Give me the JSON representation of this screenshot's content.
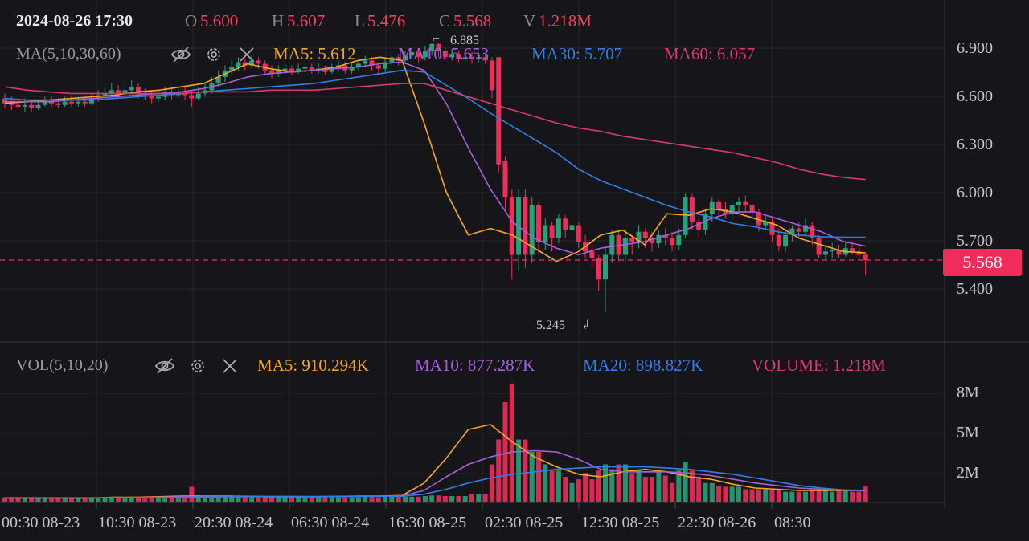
{
  "header": {
    "datetime": "2024-08-26 17:30",
    "open_label": "O",
    "open_value": "5.600",
    "high_label": "H",
    "high_value": "5.607",
    "low_label": "L",
    "low_value": "5.476",
    "close_label": "C",
    "close_value": "5.568",
    "vol_label": "V",
    "vol_value": "1.218M"
  },
  "ma_legend": {
    "name": "MA(5,10,30,60)",
    "items": [
      {
        "label": "MA5: 5.612",
        "color": "#f5a623"
      },
      {
        "label": "MA10: 5.653",
        "color": "#a461d8"
      },
      {
        "label": "MA30: 5.707",
        "color": "#2f7fe6"
      },
      {
        "label": "MA60: 6.057",
        "color": "#d63a73"
      }
    ]
  },
  "vol_legend": {
    "name": "VOL(5,10,20)",
    "items": [
      {
        "label": "MA5: 910.294K",
        "color": "#f5a623"
      },
      {
        "label": "MA10: 877.287K",
        "color": "#a461d8"
      },
      {
        "label": "MA20: 898.827K",
        "color": "#2f7fe6"
      },
      {
        "label": "VOLUME: 1.218M",
        "color": "#d63a73"
      }
    ]
  },
  "icons": {
    "visibility": "eye-slash-icon",
    "settings": "gear-icon",
    "close": "close-icon"
  },
  "current_price": "5.568",
  "price_axis": [
    "6.900",
    "6.600",
    "6.300",
    "6.000",
    "5.700",
    "5.400"
  ],
  "volume_axis": [
    "8M",
    "5M",
    "2M"
  ],
  "time_axis": [
    "00:30 08-23",
    "10:30 08-23",
    "20:30 08-24",
    "06:30 08-24",
    "16:30 08-25",
    "02:30 08-25",
    "12:30 08-25",
    "22:30 08-26",
    "08:30"
  ],
  "annotations": {
    "high": "6.885",
    "low": "5.245"
  },
  "colors": {
    "up": "#26a17a",
    "down": "#f02c5a",
    "background": "#16161a"
  },
  "chart_data": {
    "type": "candlestick",
    "price_ylim": [
      5.1,
      7.05
    ],
    "volume_ylim": [
      0,
      10
    ],
    "volume_unit": "M",
    "candles": [
      [
        6.55,
        6.52,
        6.58,
        6.49,
        0.35
      ],
      [
        6.52,
        6.51,
        6.56,
        6.48,
        0.3
      ],
      [
        6.51,
        6.5,
        6.55,
        6.48,
        0.3
      ],
      [
        6.5,
        6.51,
        6.55,
        6.47,
        0.32
      ],
      [
        6.51,
        6.49,
        6.54,
        6.47,
        0.3
      ],
      [
        6.49,
        6.51,
        6.54,
        6.48,
        0.28
      ],
      [
        6.51,
        6.53,
        6.56,
        6.5,
        0.3
      ],
      [
        6.53,
        6.52,
        6.56,
        6.5,
        0.28
      ],
      [
        6.52,
        6.51,
        6.55,
        6.49,
        0.3
      ],
      [
        6.51,
        6.53,
        6.56,
        6.5,
        0.3
      ],
      [
        6.53,
        6.52,
        6.57,
        6.5,
        0.32
      ],
      [
        6.52,
        6.53,
        6.56,
        6.5,
        0.3
      ],
      [
        6.53,
        6.52,
        6.56,
        6.5,
        0.28
      ],
      [
        6.52,
        6.55,
        6.58,
        6.51,
        0.3
      ],
      [
        6.55,
        6.57,
        6.6,
        6.53,
        0.35
      ],
      [
        6.57,
        6.58,
        6.62,
        6.55,
        0.35
      ],
      [
        6.58,
        6.6,
        6.64,
        6.56,
        0.4
      ],
      [
        6.6,
        6.58,
        6.63,
        6.55,
        0.4
      ],
      [
        6.58,
        6.6,
        6.64,
        6.56,
        0.35
      ],
      [
        6.6,
        6.62,
        6.66,
        6.58,
        0.4
      ],
      [
        6.62,
        6.58,
        6.64,
        6.55,
        0.4
      ],
      [
        6.58,
        6.57,
        6.61,
        6.54,
        0.35
      ],
      [
        6.57,
        6.55,
        6.6,
        6.52,
        0.3
      ],
      [
        6.55,
        6.56,
        6.6,
        6.53,
        0.3
      ],
      [
        6.56,
        6.59,
        6.62,
        6.54,
        0.35
      ],
      [
        6.59,
        6.57,
        6.62,
        6.54,
        0.35
      ],
      [
        6.57,
        6.58,
        6.61,
        6.55,
        0.3
      ],
      [
        6.58,
        6.57,
        6.62,
        6.54,
        0.3
      ],
      [
        6.57,
        6.55,
        6.6,
        6.5,
        1.2
      ],
      [
        6.55,
        6.58,
        6.62,
        6.54,
        0.5
      ],
      [
        6.58,
        6.6,
        6.64,
        6.56,
        0.4
      ],
      [
        6.6,
        6.64,
        6.68,
        6.58,
        0.5
      ],
      [
        6.64,
        6.68,
        6.72,
        6.62,
        0.5
      ],
      [
        6.68,
        6.72,
        6.75,
        6.65,
        0.5
      ],
      [
        6.72,
        6.74,
        6.78,
        6.7,
        0.5
      ],
      [
        6.74,
        6.77,
        6.8,
        6.72,
        0.5
      ],
      [
        6.77,
        6.75,
        6.79,
        6.72,
        0.45
      ],
      [
        6.75,
        6.78,
        6.81,
        6.73,
        0.45
      ],
      [
        6.78,
        6.76,
        6.8,
        6.73,
        0.4
      ],
      [
        6.76,
        6.72,
        6.78,
        6.7,
        0.4
      ],
      [
        6.72,
        6.7,
        6.75,
        6.67,
        0.4
      ],
      [
        6.7,
        6.72,
        6.75,
        6.68,
        0.35
      ],
      [
        6.72,
        6.73,
        6.76,
        6.7,
        0.35
      ],
      [
        6.73,
        6.71,
        6.75,
        6.69,
        0.35
      ],
      [
        6.71,
        6.73,
        6.76,
        6.7,
        0.35
      ],
      [
        6.73,
        6.74,
        6.77,
        6.71,
        0.35
      ],
      [
        6.74,
        6.72,
        6.76,
        6.7,
        0.35
      ],
      [
        6.72,
        6.73,
        6.76,
        6.7,
        0.35
      ],
      [
        6.73,
        6.71,
        6.75,
        6.69,
        0.35
      ],
      [
        6.71,
        6.73,
        6.76,
        6.7,
        0.35
      ],
      [
        6.73,
        6.75,
        6.78,
        6.71,
        0.35
      ],
      [
        6.75,
        6.72,
        6.77,
        6.7,
        0.35
      ],
      [
        6.72,
        6.74,
        6.77,
        6.7,
        0.35
      ],
      [
        6.74,
        6.76,
        6.79,
        6.72,
        0.35
      ],
      [
        6.76,
        6.78,
        6.81,
        6.74,
        0.4
      ],
      [
        6.78,
        6.75,
        6.8,
        6.72,
        0.4
      ],
      [
        6.75,
        6.73,
        6.77,
        6.7,
        0.35
      ],
      [
        6.73,
        6.77,
        6.8,
        6.71,
        0.4
      ],
      [
        6.77,
        6.8,
        6.83,
        6.75,
        0.4
      ],
      [
        6.8,
        6.78,
        6.82,
        6.75,
        0.4
      ],
      [
        6.78,
        6.81,
        6.84,
        6.76,
        0.4
      ],
      [
        6.81,
        6.83,
        6.86,
        6.79,
        0.4
      ],
      [
        6.83,
        6.8,
        6.85,
        6.77,
        0.4
      ],
      [
        6.8,
        6.84,
        6.87,
        6.78,
        0.45
      ],
      [
        6.84,
        6.88,
        6.885,
        6.81,
        0.5
      ],
      [
        6.88,
        6.84,
        6.885,
        6.8,
        0.5
      ],
      [
        6.84,
        6.8,
        6.86,
        6.77,
        0.45
      ],
      [
        6.8,
        6.82,
        6.85,
        6.78,
        0.45
      ],
      [
        6.82,
        6.79,
        6.84,
        6.77,
        0.45
      ],
      [
        6.79,
        6.8,
        6.83,
        6.77,
        0.45
      ],
      [
        6.8,
        6.79,
        6.83,
        6.76,
        0.6
      ],
      [
        6.79,
        6.8,
        6.83,
        6.77,
        0.6
      ],
      [
        6.8,
        6.78,
        6.82,
        6.76,
        0.6
      ],
      [
        6.78,
        6.6,
        6.8,
        6.55,
        3.0
      ],
      [
        6.8,
        6.15,
        6.8,
        6.1,
        5.0
      ],
      [
        6.17,
        5.95,
        6.2,
        5.88,
        8.0
      ],
      [
        5.95,
        5.6,
        6.0,
        5.45,
        9.5
      ],
      [
        5.6,
        5.95,
        6.0,
        5.5,
        5.0
      ],
      [
        5.95,
        5.6,
        6.0,
        5.52,
        5.0
      ],
      [
        5.6,
        5.9,
        5.95,
        5.55,
        4.0
      ],
      [
        5.9,
        5.68,
        5.92,
        5.6,
        4.0
      ],
      [
        5.68,
        5.78,
        5.82,
        5.63,
        3.0
      ],
      [
        5.78,
        5.7,
        5.8,
        5.62,
        2.5
      ],
      [
        5.7,
        5.82,
        5.85,
        5.67,
        2.5
      ],
      [
        5.82,
        5.75,
        5.84,
        5.7,
        2.0
      ],
      [
        5.75,
        5.78,
        5.82,
        5.72,
        1.5
      ],
      [
        5.78,
        5.68,
        5.8,
        5.64,
        1.8
      ],
      [
        5.68,
        5.62,
        5.72,
        5.58,
        2.3
      ],
      [
        5.62,
        5.58,
        5.66,
        5.52,
        1.8
      ],
      [
        5.58,
        5.45,
        5.6,
        5.38,
        2.5
      ],
      [
        5.45,
        5.6,
        5.65,
        5.25,
        3.0
      ],
      [
        5.6,
        5.72,
        5.75,
        5.55,
        2.6
      ],
      [
        5.72,
        5.6,
        5.74,
        5.56,
        3.0
      ],
      [
        5.6,
        5.7,
        5.75,
        5.56,
        3.0
      ],
      [
        5.7,
        5.68,
        5.72,
        5.6,
        2.3
      ],
      [
        5.68,
        5.74,
        5.78,
        5.64,
        2.6
      ],
      [
        5.74,
        5.7,
        5.76,
        5.64,
        2.0
      ],
      [
        5.7,
        5.67,
        5.74,
        5.62,
        2.0
      ],
      [
        5.67,
        5.72,
        5.75,
        5.64,
        2.5
      ],
      [
        5.72,
        5.7,
        5.76,
        5.66,
        2.1
      ],
      [
        5.7,
        5.66,
        5.74,
        5.62,
        1.5
      ],
      [
        5.66,
        5.72,
        5.76,
        5.63,
        2.5
      ],
      [
        5.72,
        5.95,
        5.97,
        5.7,
        3.2
      ],
      [
        5.95,
        5.8,
        5.97,
        5.75,
        2.5
      ],
      [
        5.8,
        5.75,
        5.83,
        5.7,
        2.0
      ],
      [
        5.75,
        5.85,
        5.88,
        5.72,
        1.5
      ],
      [
        5.85,
        5.92,
        5.95,
        5.8,
        1.5
      ],
      [
        5.92,
        5.88,
        5.94,
        5.84,
        1.3
      ],
      [
        5.88,
        5.85,
        5.92,
        5.82,
        1.2
      ],
      [
        5.85,
        5.9,
        5.92,
        5.82,
        1.2
      ],
      [
        5.9,
        5.92,
        5.95,
        5.86,
        1.2
      ],
      [
        5.92,
        5.9,
        5.96,
        5.86,
        1.0
      ],
      [
        5.9,
        5.86,
        5.92,
        5.82,
        1.0
      ],
      [
        5.86,
        5.78,
        5.88,
        5.74,
        1.0
      ],
      [
        5.78,
        5.8,
        5.84,
        5.75,
        1.0
      ],
      [
        5.8,
        5.72,
        5.82,
        5.68,
        0.9
      ],
      [
        5.72,
        5.65,
        5.76,
        5.62,
        0.9
      ],
      [
        5.65,
        5.72,
        5.75,
        5.62,
        0.8
      ],
      [
        5.72,
        5.76,
        5.78,
        5.68,
        0.8
      ],
      [
        5.76,
        5.74,
        5.8,
        5.7,
        0.8
      ],
      [
        5.74,
        5.78,
        5.82,
        5.72,
        0.8
      ],
      [
        5.78,
        5.7,
        5.8,
        5.66,
        0.9
      ],
      [
        5.7,
        5.6,
        5.72,
        5.58,
        1.0
      ],
      [
        5.6,
        5.62,
        5.66,
        5.57,
        1.0
      ],
      [
        5.62,
        5.63,
        5.67,
        5.58,
        0.8
      ],
      [
        5.63,
        5.6,
        5.66,
        5.58,
        1.0
      ],
      [
        5.6,
        5.64,
        5.68,
        5.59,
        0.9
      ],
      [
        5.64,
        5.62,
        5.68,
        5.6,
        0.8
      ],
      [
        5.62,
        5.6,
        5.66,
        5.57,
        0.8
      ],
      [
        5.6,
        5.568,
        5.607,
        5.476,
        1.218
      ]
    ],
    "ma_series": [
      {
        "name": "MA5",
        "color": "#f5a623",
        "values": [
          6.52,
          6.53,
          6.54,
          6.55,
          6.56,
          6.57,
          6.59,
          6.6,
          6.62,
          6.64,
          6.7,
          6.76,
          6.73,
          6.71,
          6.72,
          6.74,
          6.78,
          6.8,
          6.78,
          6.4,
          5.98,
          5.72,
          5.76,
          5.72,
          5.64,
          5.56,
          5.62,
          5.72,
          5.75,
          5.66,
          5.85,
          5.84,
          5.88,
          5.86,
          5.82,
          5.78,
          5.7,
          5.66,
          5.62,
          5.612
        ]
      },
      {
        "name": "MA10",
        "color": "#a461d8",
        "values": [
          6.53,
          6.53,
          6.53,
          6.54,
          6.55,
          6.56,
          6.57,
          6.58,
          6.59,
          6.61,
          6.64,
          6.68,
          6.7,
          6.71,
          6.72,
          6.73,
          6.74,
          6.76,
          6.77,
          6.72,
          6.52,
          6.25,
          6.0,
          5.8,
          5.7,
          5.64,
          5.6,
          5.64,
          5.66,
          5.68,
          5.72,
          5.76,
          5.82,
          5.86,
          5.86,
          5.82,
          5.78,
          5.74,
          5.68,
          5.653
        ]
      },
      {
        "name": "MA30",
        "color": "#2f7fe6",
        "values": [
          6.55,
          6.54,
          6.54,
          6.54,
          6.54,
          6.55,
          6.56,
          6.57,
          6.58,
          6.59,
          6.6,
          6.61,
          6.62,
          6.63,
          6.64,
          6.66,
          6.68,
          6.7,
          6.72,
          6.71,
          6.63,
          6.55,
          6.46,
          6.38,
          6.3,
          6.22,
          6.12,
          6.05,
          6.0,
          5.95,
          5.9,
          5.86,
          5.83,
          5.79,
          5.77,
          5.74,
          5.72,
          5.71,
          5.707,
          5.707
        ]
      },
      {
        "name": "MA60",
        "color": "#d63a73",
        "values": [
          6.62,
          6.6,
          6.59,
          6.58,
          6.58,
          6.58,
          6.58,
          6.58,
          6.58,
          6.59,
          6.59,
          6.59,
          6.6,
          6.6,
          6.6,
          6.61,
          6.62,
          6.63,
          6.64,
          6.64,
          6.6,
          6.56,
          6.52,
          6.48,
          6.44,
          6.4,
          6.37,
          6.35,
          6.32,
          6.3,
          6.28,
          6.26,
          6.24,
          6.22,
          6.19,
          6.16,
          6.12,
          6.09,
          6.07,
          6.057
        ]
      }
    ],
    "vol_ma_series": [
      {
        "name": "MA5",
        "color": "#f5a623",
        "values": [
          0.3,
          0.3,
          0.3,
          0.3,
          0.3,
          0.35,
          0.35,
          0.4,
          0.45,
          0.45,
          0.45,
          0.42,
          0.4,
          0.4,
          0.4,
          0.42,
          0.45,
          0.45,
          0.5,
          1.5,
          3.5,
          5.8,
          6.2,
          4.8,
          3.6,
          2.8,
          2.2,
          2.0,
          2.4,
          2.6,
          2.4,
          2.0,
          1.8,
          1.4,
          1.1,
          1.0,
          0.9,
          0.9,
          0.9,
          0.91
        ]
      },
      {
        "name": "MA10",
        "color": "#a461d8",
        "values": [
          0.3,
          0.3,
          0.3,
          0.3,
          0.3,
          0.32,
          0.33,
          0.36,
          0.4,
          0.42,
          0.44,
          0.43,
          0.42,
          0.41,
          0.4,
          0.41,
          0.43,
          0.44,
          0.47,
          0.9,
          2.0,
          3.0,
          3.6,
          4.0,
          4.1,
          4.0,
          3.4,
          2.6,
          2.4,
          2.4,
          2.4,
          2.3,
          2.1,
          1.8,
          1.5,
          1.3,
          1.1,
          1.0,
          0.92,
          0.88
        ]
      },
      {
        "name": "MA20",
        "color": "#2f7fe6",
        "values": [
          0.32,
          0.32,
          0.31,
          0.31,
          0.31,
          0.31,
          0.32,
          0.33,
          0.35,
          0.37,
          0.39,
          0.4,
          0.41,
          0.42,
          0.42,
          0.42,
          0.42,
          0.43,
          0.44,
          0.6,
          1.0,
          1.5,
          1.9,
          2.2,
          2.4,
          2.6,
          2.7,
          2.8,
          2.8,
          2.8,
          2.7,
          2.6,
          2.4,
          2.2,
          1.9,
          1.6,
          1.3,
          1.1,
          0.95,
          0.9
        ]
      }
    ]
  }
}
